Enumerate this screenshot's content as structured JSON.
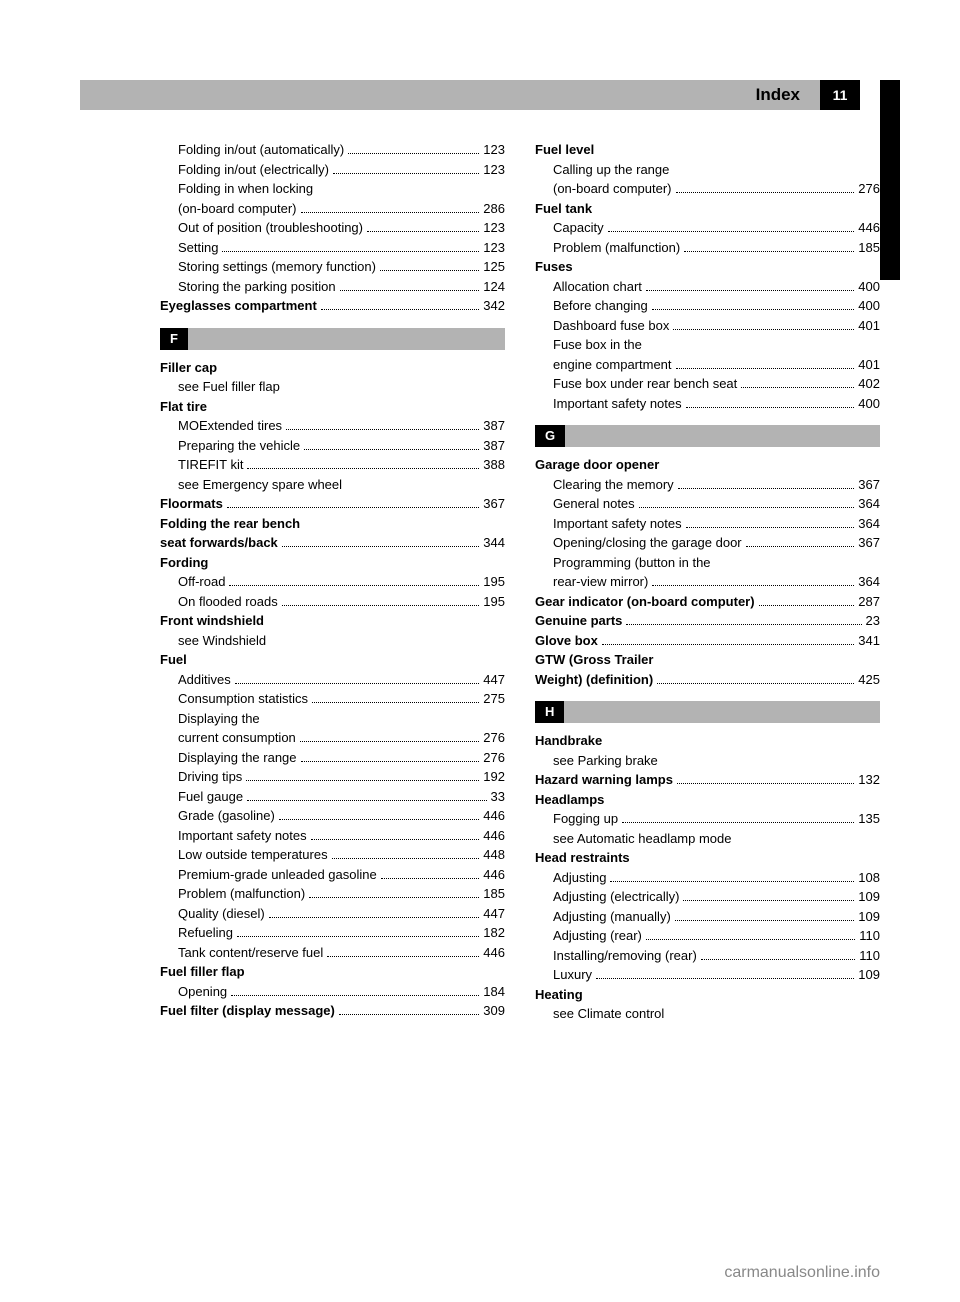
{
  "header": {
    "title": "Index",
    "page_number": "11"
  },
  "left_column": [
    {
      "type": "sub",
      "label": "Folding in/out (automatically)",
      "page": "123"
    },
    {
      "type": "sub",
      "label": "Folding in/out (electrically)",
      "page": "123"
    },
    {
      "type": "sub",
      "label": "Folding in when locking (on-board computer)",
      "page": "286",
      "wrap": true
    },
    {
      "type": "sub",
      "label": "Out of position (troubleshooting)",
      "page": "123"
    },
    {
      "type": "sub",
      "label": "Setting",
      "page": "123"
    },
    {
      "type": "sub",
      "label": "Storing settings (memory function)",
      "page": "125"
    },
    {
      "type": "sub",
      "label": "Storing the parking position",
      "page": "124"
    },
    {
      "type": "head",
      "label": "Eyeglasses compartment",
      "page": "342"
    },
    {
      "type": "letter",
      "label": "F"
    },
    {
      "type": "head",
      "label": "Filler cap",
      "nopg": true
    },
    {
      "type": "sub",
      "label": "see Fuel filler flap",
      "nopg": true
    },
    {
      "type": "head",
      "label": "Flat tire",
      "nopg": true
    },
    {
      "type": "sub",
      "label": "MOExtended tires",
      "page": "387"
    },
    {
      "type": "sub",
      "label": "Preparing the vehicle",
      "page": "387"
    },
    {
      "type": "sub",
      "label": "TIREFIT kit",
      "page": "388"
    },
    {
      "type": "sub",
      "label": "see Emergency spare wheel",
      "nopg": true
    },
    {
      "type": "head",
      "label": "Floormats",
      "page": "367"
    },
    {
      "type": "head",
      "label": "Folding the rear bench seat forwards/back",
      "page": "344",
      "wrap": true
    },
    {
      "type": "head",
      "label": "Fording",
      "nopg": true
    },
    {
      "type": "sub",
      "label": "Off-road",
      "page": "195"
    },
    {
      "type": "sub",
      "label": "On flooded roads",
      "page": "195"
    },
    {
      "type": "head",
      "label": "Front windshield",
      "nopg": true
    },
    {
      "type": "sub",
      "label": "see Windshield",
      "nopg": true
    },
    {
      "type": "head",
      "label": "Fuel",
      "nopg": true
    },
    {
      "type": "sub",
      "label": "Additives",
      "page": "447"
    },
    {
      "type": "sub",
      "label": "Consumption statistics",
      "page": "275"
    },
    {
      "type": "sub",
      "label": "Displaying the current consumption",
      "page": "276",
      "wrap": true
    },
    {
      "type": "sub",
      "label": "Displaying the range",
      "page": "276"
    },
    {
      "type": "sub",
      "label": "Driving tips",
      "page": "192"
    },
    {
      "type": "sub",
      "label": "Fuel gauge",
      "page": "33"
    },
    {
      "type": "sub",
      "label": "Grade (gasoline)",
      "page": "446"
    },
    {
      "type": "sub",
      "label": "Important safety notes",
      "page": "446"
    },
    {
      "type": "sub",
      "label": "Low outside temperatures",
      "page": "448"
    },
    {
      "type": "sub",
      "label": "Premium-grade unleaded gasoline",
      "page": "446"
    },
    {
      "type": "sub",
      "label": "Problem (malfunction)",
      "page": "185"
    },
    {
      "type": "sub",
      "label": "Quality (diesel)",
      "page": "447"
    },
    {
      "type": "sub",
      "label": "Refueling",
      "page": "182"
    },
    {
      "type": "sub",
      "label": "Tank content/reserve fuel",
      "page": "446"
    },
    {
      "type": "head",
      "label": "Fuel filler flap",
      "nopg": true
    },
    {
      "type": "sub",
      "label": "Opening",
      "page": "184"
    },
    {
      "type": "head",
      "label": "Fuel filter (display message)",
      "page": "309"
    }
  ],
  "right_column": [
    {
      "type": "head",
      "label": "Fuel level",
      "nopg": true
    },
    {
      "type": "sub",
      "label": "Calling up the range (on-board computer)",
      "page": "276",
      "wrap": true
    },
    {
      "type": "head",
      "label": "Fuel tank",
      "nopg": true
    },
    {
      "type": "sub",
      "label": "Capacity",
      "page": "446"
    },
    {
      "type": "sub",
      "label": "Problem (malfunction)",
      "page": "185"
    },
    {
      "type": "head",
      "label": "Fuses",
      "nopg": true
    },
    {
      "type": "sub",
      "label": "Allocation chart",
      "page": "400"
    },
    {
      "type": "sub",
      "label": "Before changing",
      "page": "400"
    },
    {
      "type": "sub",
      "label": "Dashboard fuse box",
      "page": "401"
    },
    {
      "type": "sub",
      "label": "Fuse box in the engine compartment",
      "page": "401",
      "wrap": true
    },
    {
      "type": "sub",
      "label": "Fuse box under rear bench seat",
      "page": "402"
    },
    {
      "type": "sub",
      "label": "Important safety notes",
      "page": "400"
    },
    {
      "type": "letter",
      "label": "G"
    },
    {
      "type": "head",
      "label": "Garage door opener",
      "nopg": true
    },
    {
      "type": "sub",
      "label": "Clearing the memory",
      "page": "367"
    },
    {
      "type": "sub",
      "label": "General notes",
      "page": "364"
    },
    {
      "type": "sub",
      "label": "Important safety notes",
      "page": "364"
    },
    {
      "type": "sub",
      "label": "Opening/closing the garage door",
      "page": "367"
    },
    {
      "type": "sub",
      "label": "Programming (button in the rear-view mirror)",
      "page": "364",
      "wrap": true
    },
    {
      "type": "head",
      "label": "Gear indicator (on-board computer)",
      "page": "287"
    },
    {
      "type": "head",
      "label": "Genuine parts",
      "page": "23"
    },
    {
      "type": "head",
      "label": "Glove box",
      "page": "341"
    },
    {
      "type": "head",
      "label": "GTW (Gross Trailer Weight) (definition)",
      "page": "425",
      "wrap": true
    },
    {
      "type": "letter",
      "label": "H"
    },
    {
      "type": "head",
      "label": "Handbrake",
      "nopg": true
    },
    {
      "type": "sub",
      "label": "see Parking brake",
      "nopg": true
    },
    {
      "type": "head",
      "label": "Hazard warning lamps",
      "page": "132"
    },
    {
      "type": "head",
      "label": "Headlamps",
      "nopg": true
    },
    {
      "type": "sub",
      "label": "Fogging up",
      "page": "135"
    },
    {
      "type": "sub",
      "label": "see Automatic headlamp mode",
      "nopg": true
    },
    {
      "type": "head",
      "label": "Head restraints",
      "nopg": true
    },
    {
      "type": "sub",
      "label": "Adjusting",
      "page": "108"
    },
    {
      "type": "sub",
      "label": "Adjusting (electrically)",
      "page": "109"
    },
    {
      "type": "sub",
      "label": "Adjusting (manually)",
      "page": "109"
    },
    {
      "type": "sub",
      "label": "Adjusting (rear)",
      "page": "110"
    },
    {
      "type": "sub",
      "label": "Installing/removing (rear)",
      "page": "110"
    },
    {
      "type": "sub",
      "label": "Luxury",
      "page": "109"
    },
    {
      "type": "head",
      "label": "Heating",
      "nopg": true
    },
    {
      "type": "sub",
      "label": "see Climate control",
      "nopg": true
    }
  ],
  "footer": "carmanualsonline.info",
  "colors": {
    "header_bg": "#b3b3b3",
    "black": "#000000",
    "white": "#ffffff",
    "footer_text": "#888888"
  }
}
